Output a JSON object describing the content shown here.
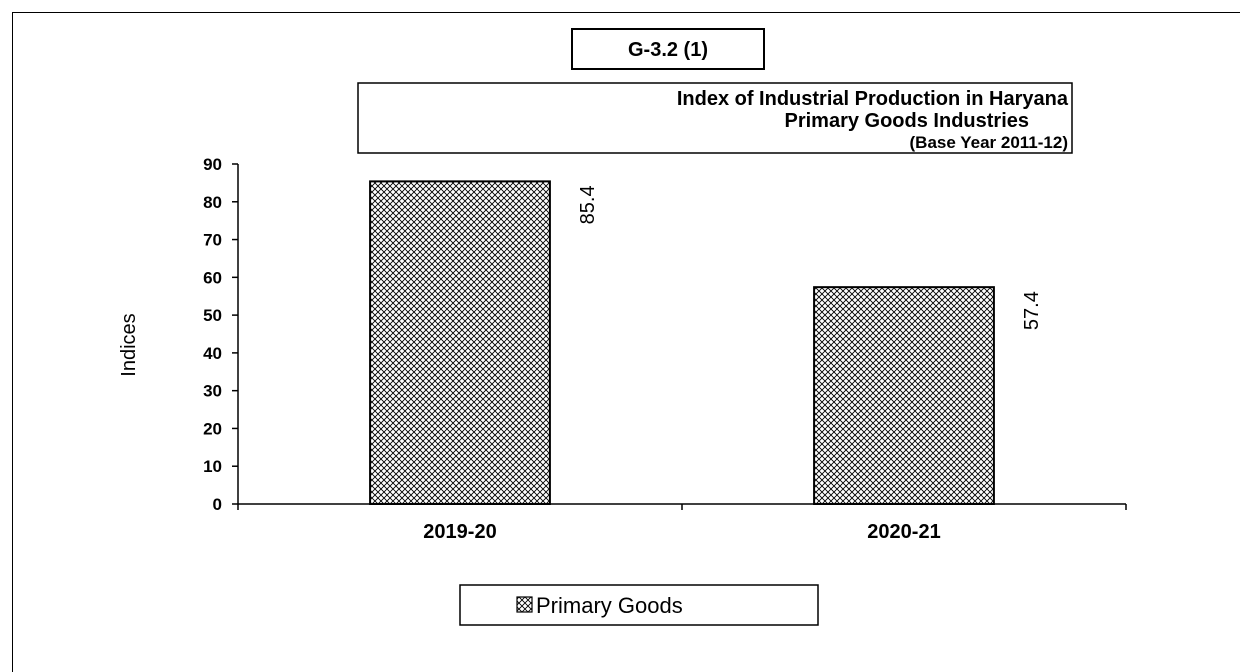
{
  "figure_id": "G-3.2 (1)",
  "colors": {
    "bar_fill": "#ffffff",
    "bar_hatch": "#000000",
    "axis": "#000000"
  },
  "chart_data": {
    "type": "bar",
    "title": "Index of Industrial Production in Haryana",
    "subtitle": "Primary Goods Industries",
    "note": "(Base Year  2011-12)",
    "categories": [
      "2019-20",
      "2020-21"
    ],
    "series": [
      {
        "name": "Primary Goods",
        "values": [
          85.4,
          57.4
        ],
        "pattern": "crosshatch"
      }
    ],
    "data_labels": [
      "85.4",
      "57.4"
    ],
    "xlabel": "",
    "ylabel": "Indices",
    "ylim": [
      0,
      90
    ],
    "yticks": [
      0,
      10,
      20,
      30,
      40,
      50,
      60,
      70,
      80,
      90
    ],
    "grid": false,
    "legend_position": "bottom"
  }
}
